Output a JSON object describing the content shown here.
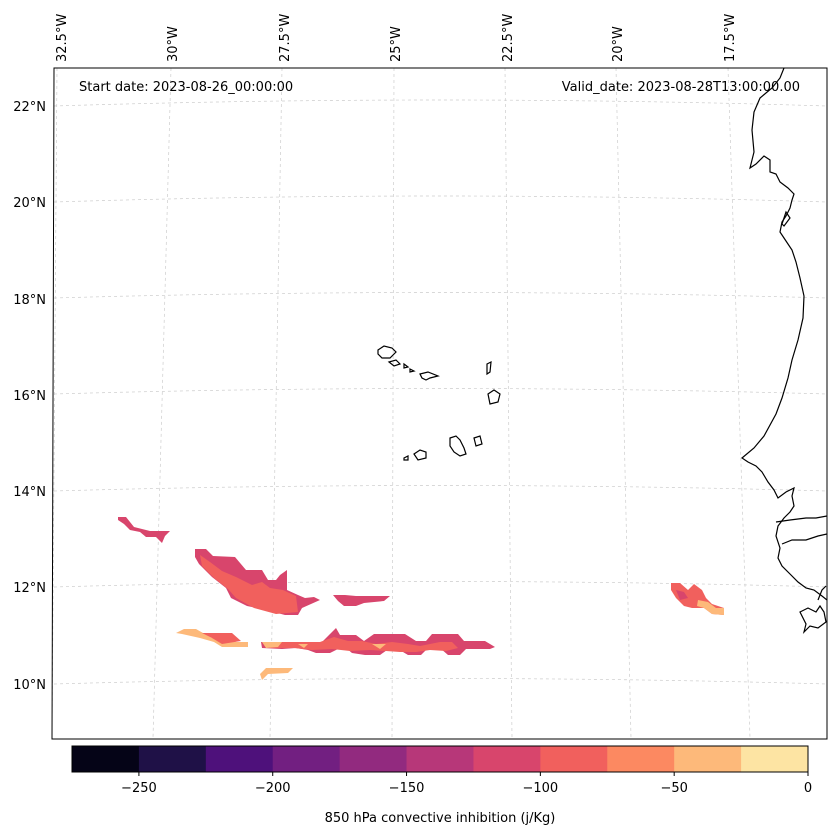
{
  "header": {
    "start_date": "Start date: 2023-08-26_00:00:00",
    "valid_date": "Valid_date: 2023-08-28T13:00:00.00"
  },
  "axes": {
    "longitude_labels": [
      "32.5°W",
      "30°W",
      "27.5°W",
      "25°W",
      "22.5°W",
      "20°W",
      "17.5°W"
    ],
    "latitude_labels": [
      "22°N",
      "20°N",
      "18°N",
      "16°N",
      "14°N",
      "12°N",
      "10°N"
    ]
  },
  "colorbar": {
    "label": "850 hPa convective inhibition (j/Kg)",
    "tick_labels": [
      "−250",
      "−200",
      "−150",
      "−100",
      "−50",
      "0"
    ],
    "bins": [
      -275,
      -250,
      -225,
      -200,
      -175,
      -150,
      -125,
      -100,
      -75,
      -50,
      -25,
      0
    ],
    "colors": [
      "#050417",
      "#1f1147",
      "#4e117b",
      "#721f81",
      "#922a7f",
      "#b73779",
      "#d8456c",
      "#f1605d",
      "#fc8961",
      "#fdb97a",
      "#fde4a3"
    ]
  },
  "field_colors": {
    "level_-125": "#d8456c",
    "level_-100": "#f1605d",
    "level_-50": "#fdb97a",
    "level_-25": "#fde4a3"
  }
}
